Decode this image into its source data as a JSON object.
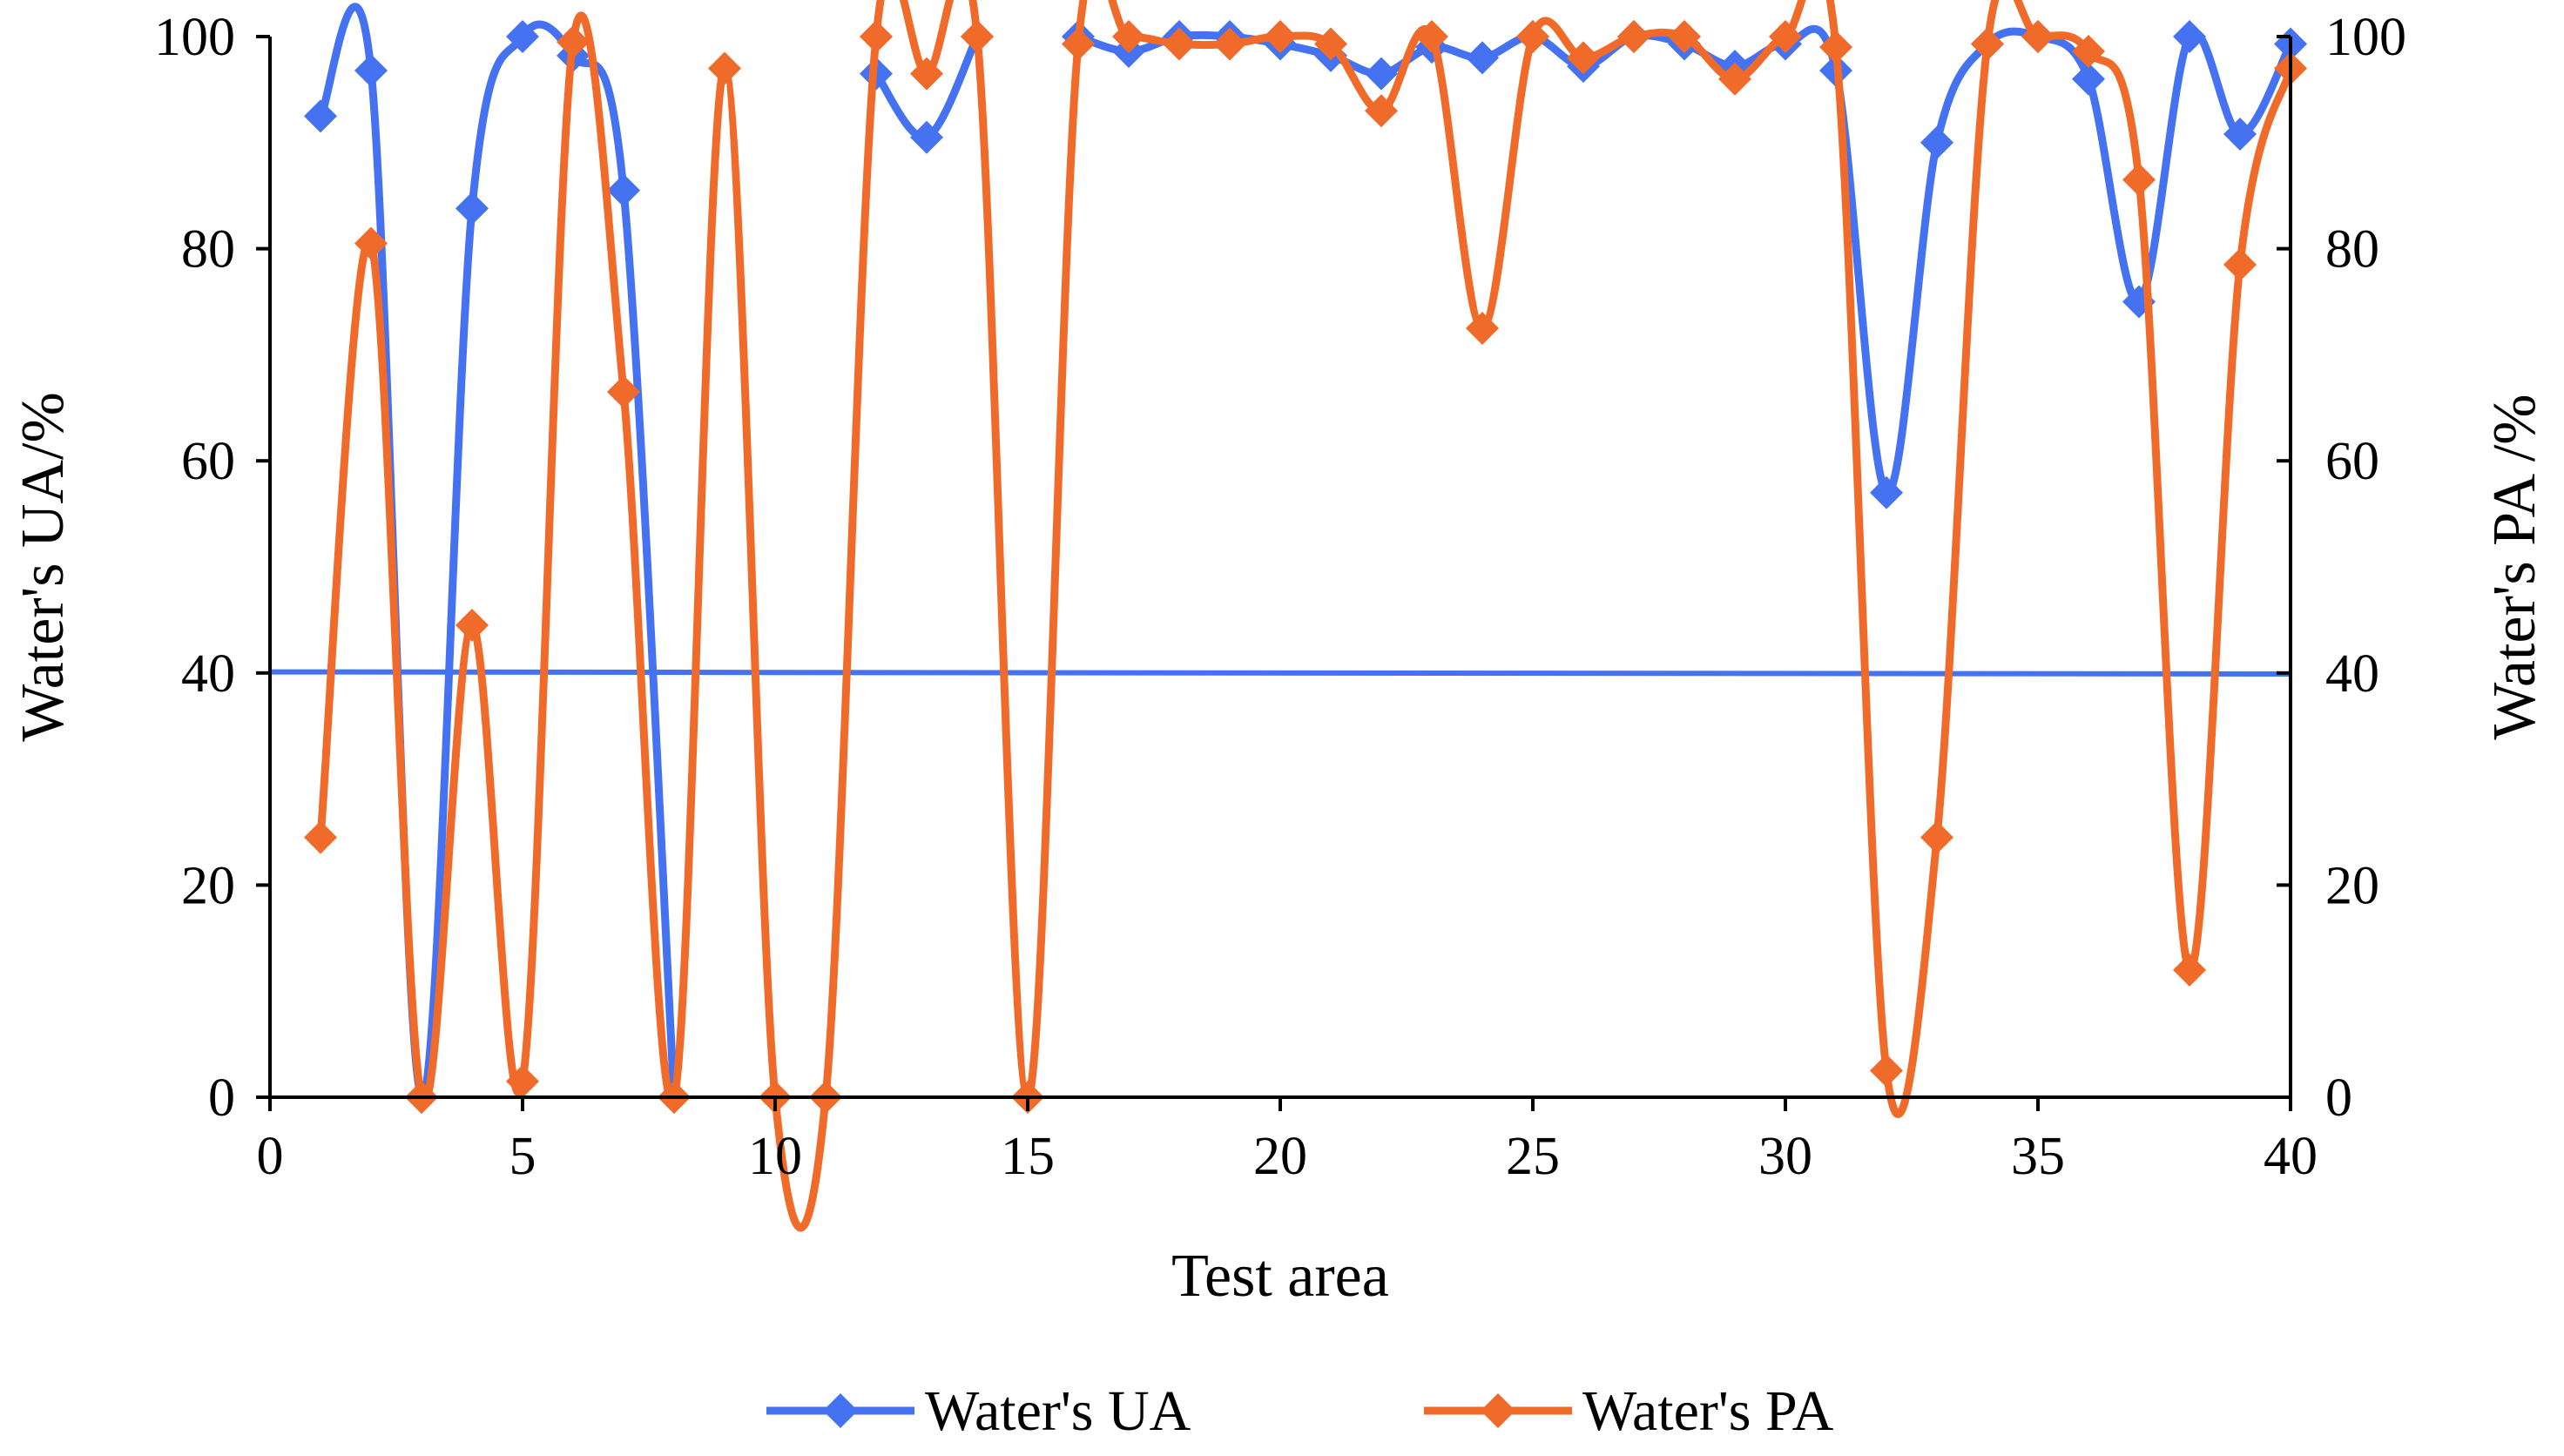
{
  "chart_data": {
    "type": "line",
    "title": "",
    "xlabel": "Test area",
    "ylabel": "Water's UA/%",
    "y2label": "Water's PA /%",
    "xlim": [
      0,
      40
    ],
    "ylim": [
      0,
      100
    ],
    "y2lim": [
      0,
      100
    ],
    "x_ticks": [
      0,
      5,
      10,
      15,
      20,
      25,
      30,
      35,
      40
    ],
    "y_ticks": [
      0,
      20,
      40,
      60,
      80,
      100
    ],
    "y2_ticks": [
      0,
      20,
      40,
      60,
      80,
      100
    ],
    "x": [
      1,
      2,
      3,
      4,
      5,
      6,
      7,
      8,
      9,
      10,
      11,
      12,
      13,
      14,
      15,
      16,
      17,
      18,
      19,
      20,
      21,
      22,
      23,
      24,
      25,
      26,
      27,
      28,
      29,
      30,
      31,
      32,
      33,
      34,
      35,
      36,
      37,
      38,
      39,
      40
    ],
    "series": [
      {
        "name": "Water's UA",
        "axis": "left",
        "color": "#4472f0",
        "values": [
          92.5,
          96.8,
          0,
          83.8,
          100,
          98.2,
          85.5,
          0,
          null,
          null,
          null,
          96.5,
          90.5,
          100,
          null,
          100,
          98.6,
          100,
          100,
          99.3,
          98.2,
          96.5,
          99.0,
          98.0,
          100,
          97.2,
          100,
          99.3,
          97.2,
          99.3,
          96.8,
          57.0,
          90.0,
          99.3,
          100,
          96.0,
          75.0,
          100,
          90.8,
          99.3
        ]
      },
      {
        "name": "Water's PA",
        "axis": "right",
        "color": "#f06a2a",
        "values": [
          24.5,
          80.5,
          0,
          44.5,
          1.5,
          99.5,
          66.5,
          0,
          97.0,
          0,
          0,
          100,
          96.5,
          100,
          0,
          99.3,
          100,
          99.3,
          99.3,
          100,
          99.3,
          93.0,
          100,
          72.5,
          100,
          98.0,
          100,
          100,
          96.0,
          100,
          99.0,
          2.5,
          24.5,
          99.3,
          100,
          98.6,
          86.5,
          12.0,
          78.5,
          97.0
        ]
      }
    ],
    "reference_line": {
      "y_start": 40.1,
      "y_end": 39.9,
      "color": "#4472f0"
    },
    "legend": {
      "placement": "bottom-center"
    }
  }
}
